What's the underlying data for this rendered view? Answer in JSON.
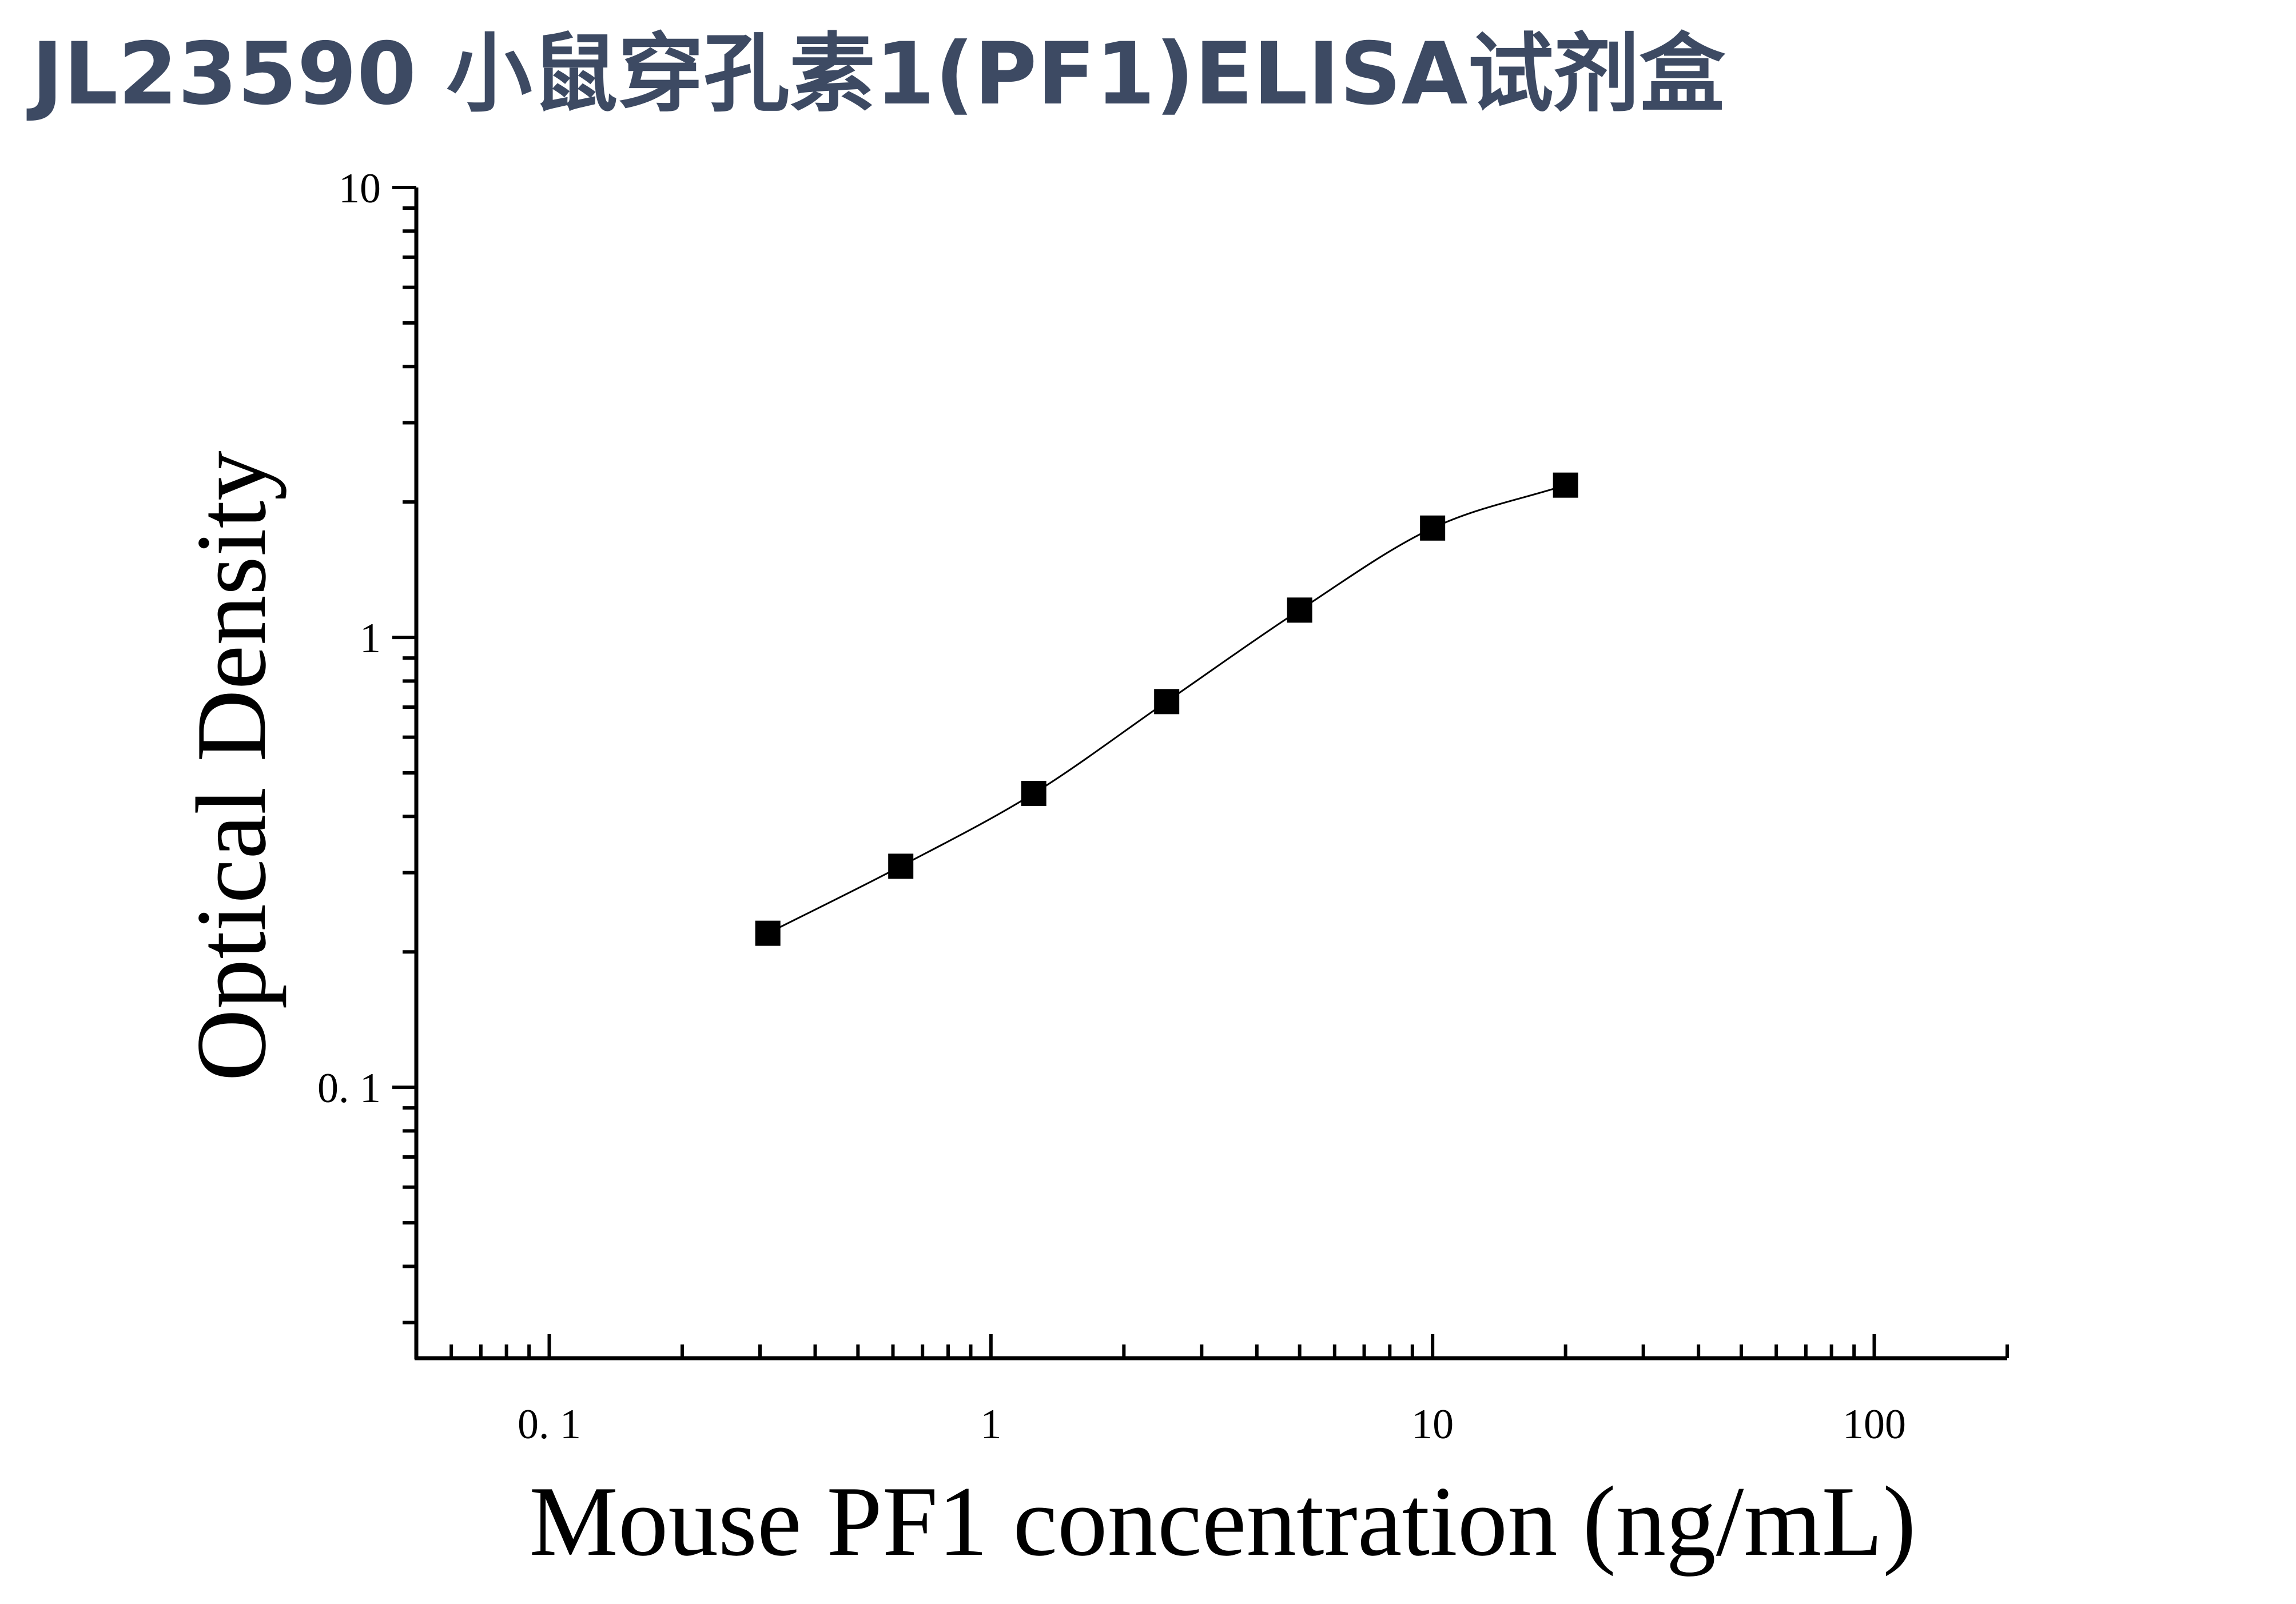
{
  "title": "JL23590 小鼠穿孔素1(PF1)ELISA试剂盒",
  "chart_data": {
    "type": "scatter",
    "title": "JL23590 小鼠穿孔素1(PF1)ELISA试剂盒",
    "xlabel": "Mouse PF1 concentration (ng/mL)",
    "ylabel": "Optical Density",
    "x_scale": "log",
    "y_scale": "log",
    "xlim": [
      0.05,
      200
    ],
    "ylim": [
      0.025,
      10
    ],
    "x_ticks": [
      {
        "value": 0.1,
        "label": "0. 1"
      },
      {
        "value": 1,
        "label": "1"
      },
      {
        "value": 10,
        "label": "10"
      },
      {
        "value": 100,
        "label": "100"
      }
    ],
    "y_ticks": [
      {
        "value": 0.1,
        "label": "0. 1"
      },
      {
        "value": 1,
        "label": "1"
      },
      {
        "value": 10,
        "label": "10"
      }
    ],
    "grid": false,
    "marker": "square",
    "fit_curve": true,
    "series": [
      {
        "x": [
          0.3125,
          0.625,
          1.25,
          2.5,
          5,
          10,
          20
        ],
        "y": [
          0.22,
          0.31,
          0.45,
          0.72,
          1.15,
          1.75,
          2.18
        ]
      }
    ],
    "colors": {
      "marker": "#000000",
      "line": "#000000",
      "title": "#3d4a63"
    }
  }
}
